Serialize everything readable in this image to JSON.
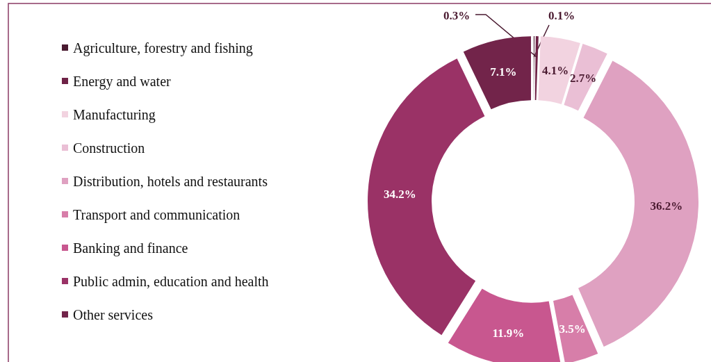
{
  "chart_data": {
    "type": "donut",
    "categories": [
      "Agriculture, forestry and fishing",
      "Energy and water",
      "Manufacturing",
      "Construction",
      "Distribution, hotels and restaurants",
      "Transport and communication",
      "Banking and finance",
      "Public admin, education and health",
      "Other services"
    ],
    "values": [
      0.1,
      0.3,
      4.1,
      2.7,
      36.2,
      3.5,
      11.9,
      34.2,
      7.1
    ],
    "colors": [
      "#4a1a30",
      "#6e2246",
      "#f2d3e0",
      "#eabfd5",
      "#dfa1c1",
      "#d77ea9",
      "#c8578f",
      "#9a3266",
      "#72244a"
    ],
    "value_labels": [
      "0.1%",
      "0.3%",
      "4.1%",
      "2.7%",
      "36.2%",
      "3.5%",
      "11.9%",
      "34.2%",
      "7.1%"
    ],
    "legend": "left"
  }
}
